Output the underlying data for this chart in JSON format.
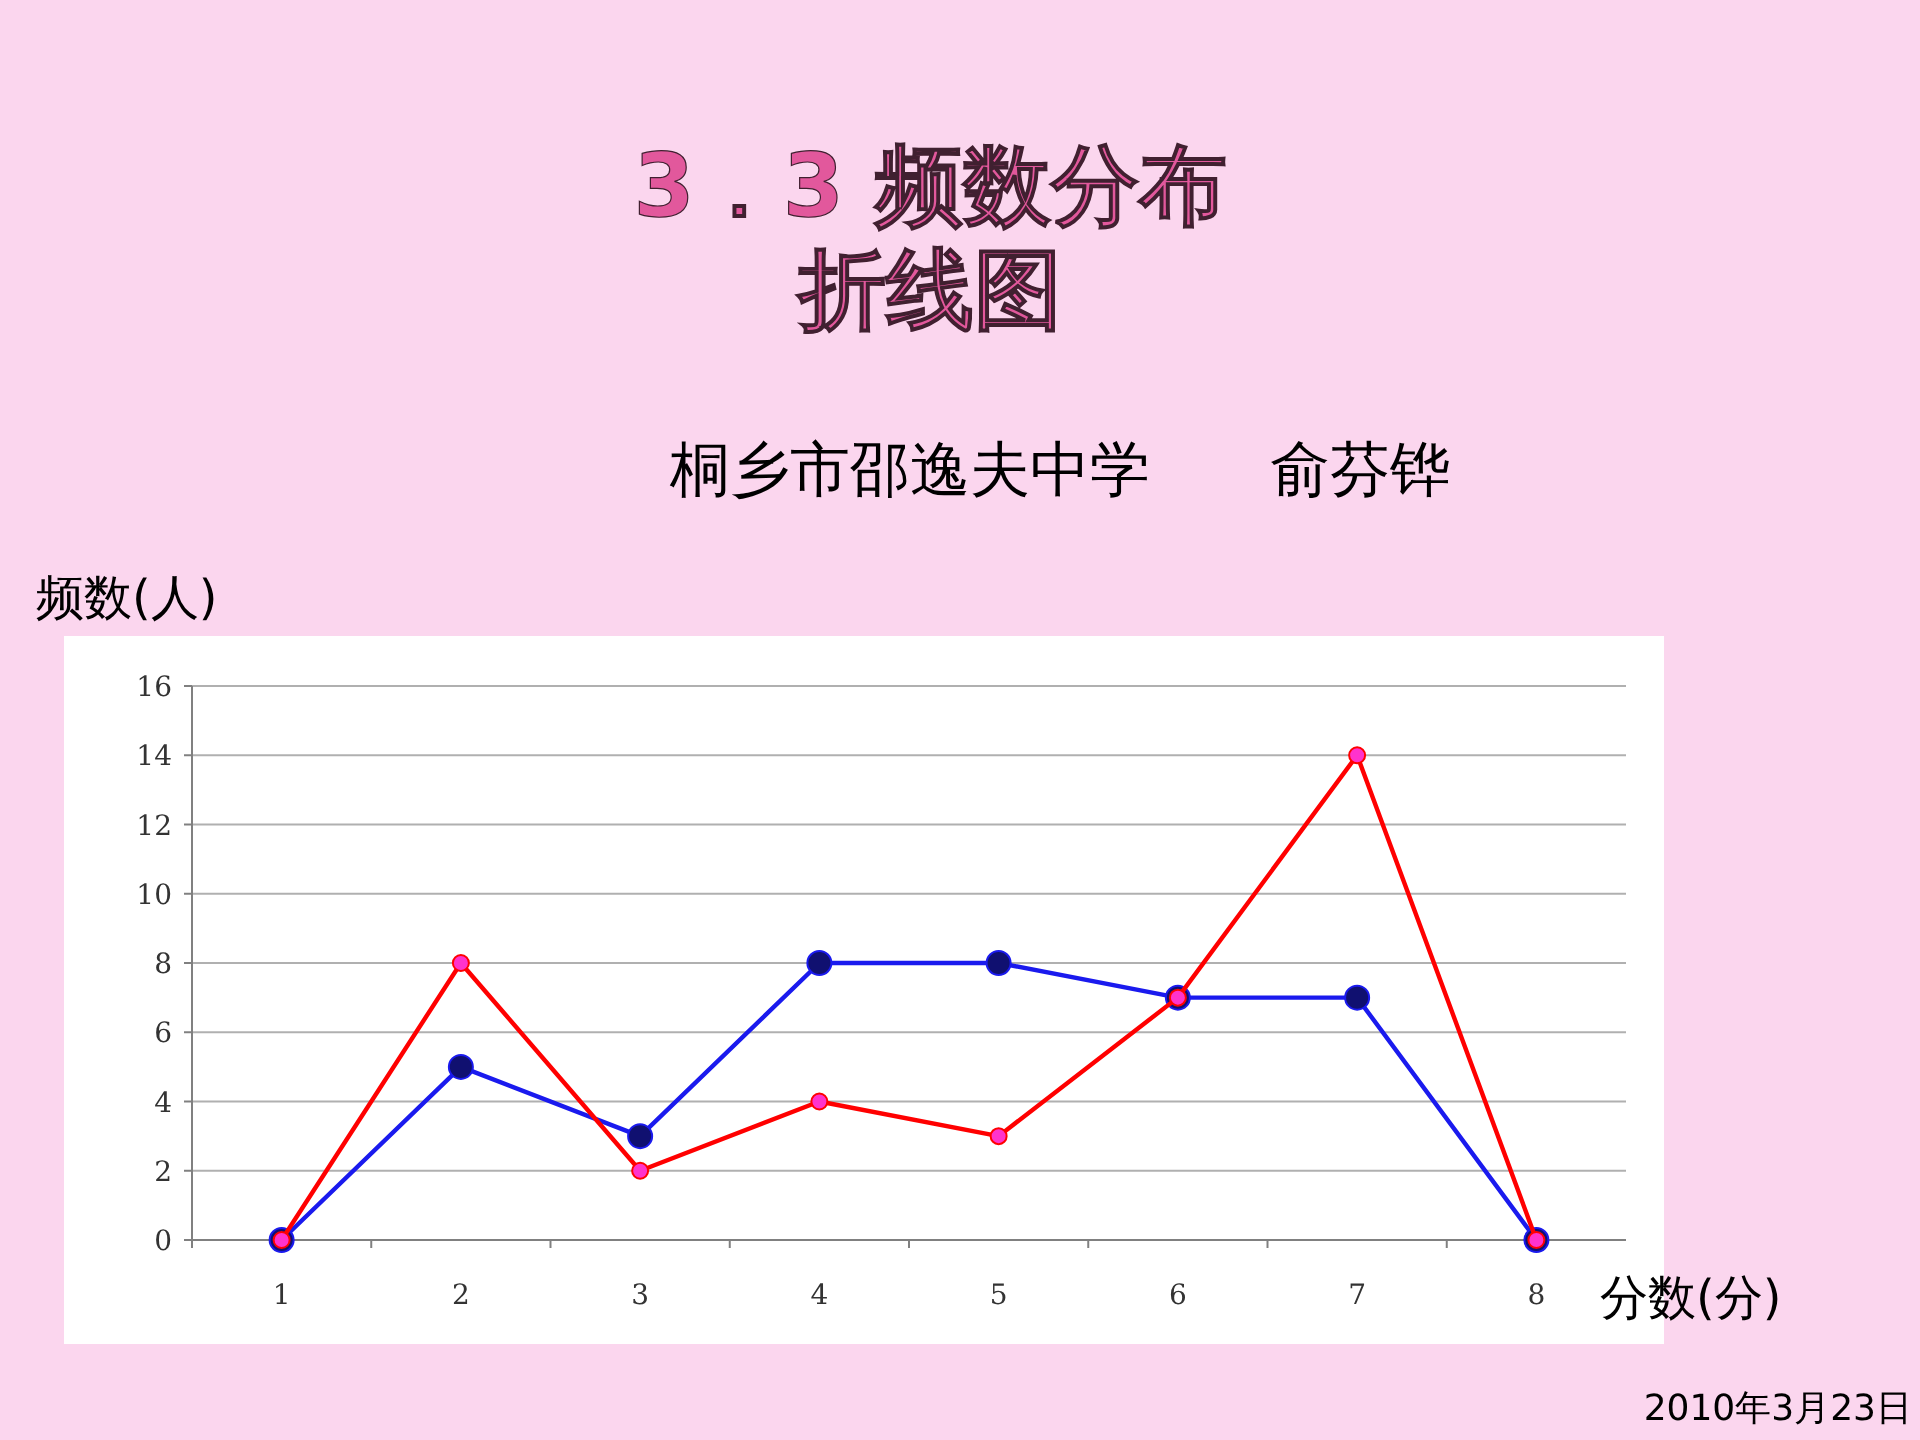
{
  "chart_data": {
    "type": "line",
    "title": "3．3 频数分布折线图",
    "subtitle": "桐乡市邵逸夫中学　　俞芬铧",
    "xlabel": "分数(分)",
    "ylabel": "频数(人)",
    "annotations": [
      "2010年3月23日"
    ],
    "categories": [
      "1",
      "2",
      "3",
      "4",
      "5",
      "6",
      "7",
      "8"
    ],
    "series": [
      {
        "color": "#ff0000",
        "values": [
          0,
          8,
          2,
          4,
          3,
          7,
          14,
          0
        ]
      },
      {
        "color": "#1a1aee",
        "values": [
          0,
          5,
          3,
          8,
          8,
          7,
          7,
          0
        ]
      }
    ],
    "ylim": [
      0,
      16
    ],
    "yticks": [
      0,
      2,
      4,
      6,
      8,
      10,
      12,
      14,
      16
    ],
    "grid": "y",
    "marker": "circle"
  }
}
